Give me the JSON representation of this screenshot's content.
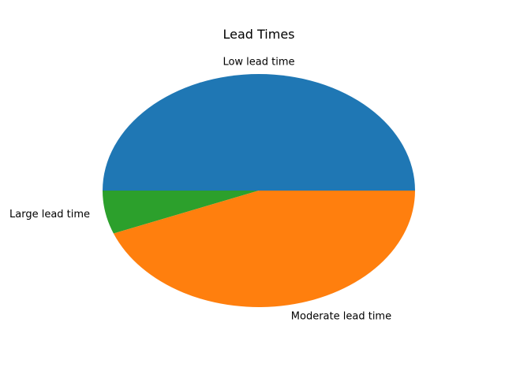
{
  "chart_data": {
    "type": "pie",
    "title": "Lead Times",
    "labels": [
      "Low lead time",
      "Large lead time",
      "Moderate lead time"
    ],
    "values": [
      50.0,
      6.0,
      44.0
    ],
    "colors": [
      "#1f77b4",
      "#2ca02c",
      "#ff7f0e"
    ],
    "start_angle": 0,
    "direction": "counterclockwise",
    "legend": "none"
  }
}
